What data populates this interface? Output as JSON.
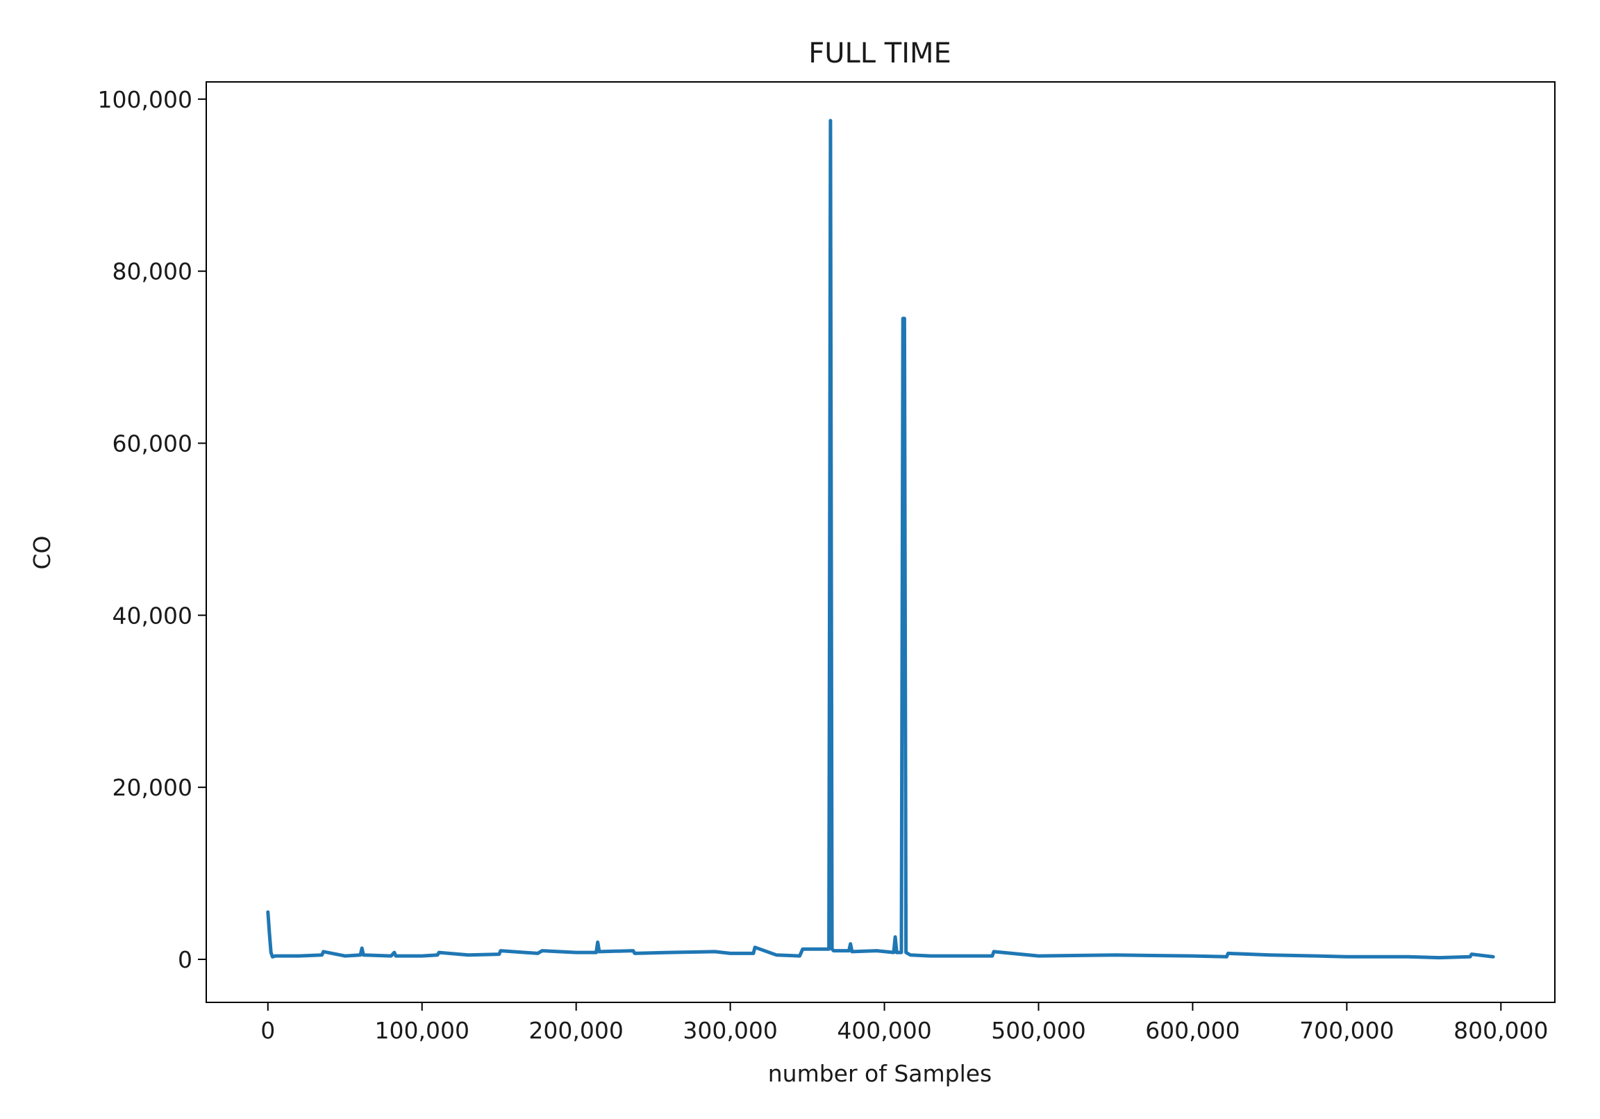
{
  "chart_data": {
    "type": "line",
    "title": "FULL TIME",
    "xlabel": "number of Samples",
    "ylabel": "CO",
    "xlim": [
      -40000,
      835000
    ],
    "ylim": [
      -5000,
      102000
    ],
    "x_ticks": [
      0,
      100000,
      200000,
      300000,
      400000,
      500000,
      600000,
      700000,
      800000
    ],
    "x_tick_labels": [
      "0",
      "100,000",
      "200,000",
      "300,000",
      "400,000",
      "500,000",
      "600,000",
      "700,000",
      "800,000"
    ],
    "y_ticks": [
      0,
      20000,
      40000,
      60000,
      80000,
      100000
    ],
    "y_tick_labels": [
      "0",
      "20,000",
      "40,000",
      "60,000",
      "80,000",
      "100,000"
    ],
    "grid": false,
    "legend": "none",
    "series": [
      {
        "color": "#1f77b4",
        "x": [
          0,
          1000,
          2000,
          3000,
          5000,
          20000,
          35000,
          36000,
          50000,
          60000,
          61000,
          62000,
          80000,
          82000,
          83000,
          100000,
          110000,
          111000,
          130000,
          150000,
          151000,
          175000,
          178000,
          200000,
          213000,
          214000,
          215000,
          237000,
          238000,
          260000,
          290000,
          300000,
          315000,
          316000,
          330000,
          345000,
          347000,
          360000,
          364000,
          365000,
          366000,
          367000,
          368000,
          377000,
          378000,
          379000,
          395000,
          406000,
          407000,
          408000,
          411000,
          412000,
          413000,
          414000,
          415000,
          417000,
          430000,
          470000,
          471000,
          500000,
          550000,
          600000,
          622000,
          623000,
          650000,
          680000,
          700000,
          740000,
          760000,
          780000,
          781000,
          795000
        ],
        "y": [
          5500,
          3000,
          800,
          300,
          400,
          400,
          500,
          900,
          400,
          500,
          1300,
          500,
          400,
          800,
          400,
          400,
          500,
          800,
          500,
          600,
          1000,
          700,
          1000,
          800,
          800,
          2000,
          900,
          1000,
          700,
          800,
          900,
          700,
          700,
          1400,
          500,
          400,
          1200,
          1200,
          1200,
          97500,
          1200,
          1000,
          1000,
          1000,
          1800,
          900,
          1000,
          800,
          2600,
          800,
          800,
          74500,
          74500,
          800,
          700,
          500,
          400,
          400,
          900,
          400,
          500,
          400,
          300,
          700,
          500,
          400,
          300,
          300,
          200,
          300,
          600,
          300
        ]
      }
    ]
  }
}
